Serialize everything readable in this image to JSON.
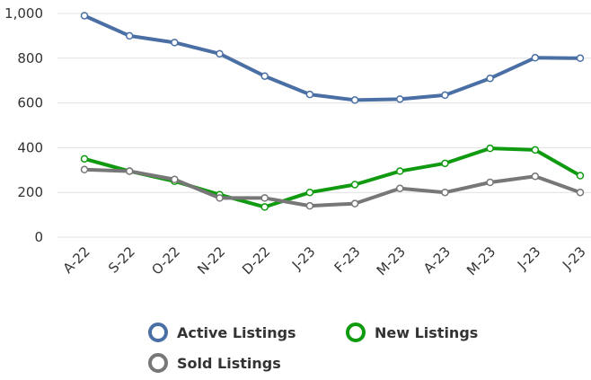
{
  "chart_data": {
    "type": "line",
    "categories": [
      "A-22",
      "S-22",
      "O-22",
      "N-22",
      "D-22",
      "J-23",
      "F-23",
      "M-23",
      "A-23",
      "M-23",
      "J-23",
      "J-23"
    ],
    "series": [
      {
        "name": "Active Listings",
        "color": "#4a6fa5",
        "values": [
          990,
          900,
          870,
          820,
          720,
          638,
          613,
          617,
          635,
          710,
          802,
          800
        ]
      },
      {
        "name": "New Listings",
        "color": "#109a10",
        "values": [
          350,
          295,
          250,
          190,
          135,
          200,
          235,
          295,
          330,
          397,
          390,
          275
        ]
      },
      {
        "name": "Sold Listings",
        "color": "#777777",
        "values": [
          302,
          295,
          258,
          175,
          175,
          140,
          150,
          218,
          200,
          245,
          272,
          200
        ]
      }
    ],
    "ylim": [
      0,
      1000
    ],
    "yticks": [
      0,
      200,
      400,
      600,
      800,
      {
        "value": 1000,
        "label": "1,000"
      }
    ],
    "grid": true
  }
}
